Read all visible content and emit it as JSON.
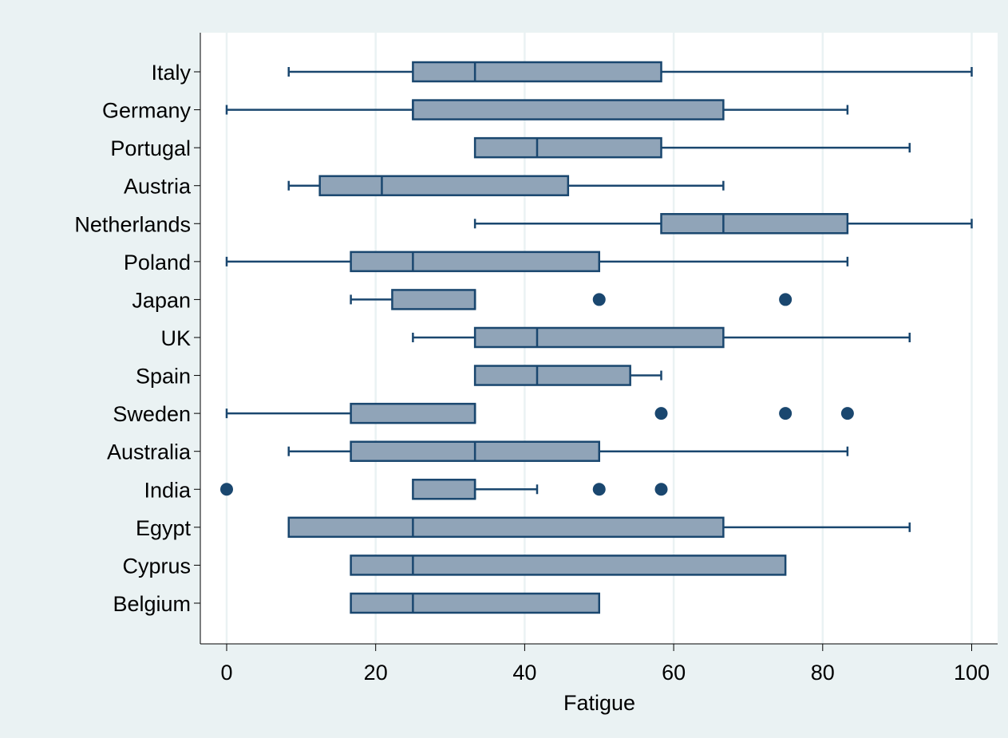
{
  "chart_data": {
    "type": "boxplot",
    "orientation": "horizontal",
    "xlabel": "Fatigue",
    "xlim": [
      0,
      100
    ],
    "xticks": [
      0,
      20,
      40,
      60,
      80,
      100
    ],
    "xtick_labels": [
      "0",
      "20",
      "40",
      "60",
      "80",
      "100"
    ],
    "grid": "vertical",
    "legend": "none",
    "colors": {
      "background": "#eaf2f3",
      "plot_background": "#ffffff",
      "gridline": "#eaf2f3",
      "box_fill": "#90a4b8",
      "stroke": "#1a476f",
      "outlier": "#1a476f",
      "text": "#000000"
    },
    "categories": [
      "Italy",
      "Germany",
      "Portugal",
      "Austria",
      "Netherlands",
      "Poland",
      "Japan",
      "UK",
      "Spain",
      "Sweden",
      "Australia",
      "India",
      "Egypt",
      "Cyprus",
      "Belgium"
    ],
    "boxes": [
      {
        "category": "Italy",
        "whisker_low": 8.33,
        "q1": 25,
        "median": 33.33,
        "q3": 58.33,
        "whisker_high": 100,
        "outliers": []
      },
      {
        "category": "Germany",
        "whisker_low": 0,
        "q1": 25,
        "median": 25,
        "q3": 66.67,
        "whisker_high": 83.33,
        "outliers": []
      },
      {
        "category": "Portugal",
        "whisker_low": 33.33,
        "q1": 33.33,
        "median": 41.67,
        "q3": 58.33,
        "whisker_high": 91.67,
        "outliers": []
      },
      {
        "category": "Austria",
        "whisker_low": 8.33,
        "q1": 12.5,
        "median": 20.83,
        "q3": 45.83,
        "whisker_high": 66.67,
        "outliers": []
      },
      {
        "category": "Netherlands",
        "whisker_low": 33.33,
        "q1": 58.33,
        "median": 66.67,
        "q3": 83.33,
        "whisker_high": 100,
        "outliers": []
      },
      {
        "category": "Poland",
        "whisker_low": 0,
        "q1": 16.67,
        "median": 25,
        "q3": 50,
        "whisker_high": 83.33,
        "outliers": []
      },
      {
        "category": "Japan",
        "whisker_low": 16.67,
        "q1": 22.22,
        "median": 33.33,
        "q3": 33.33,
        "whisker_high": 33.33,
        "outliers": [
          50,
          75
        ]
      },
      {
        "category": "UK",
        "whisker_low": 25,
        "q1": 33.33,
        "median": 41.67,
        "q3": 66.67,
        "whisker_high": 91.67,
        "outliers": []
      },
      {
        "category": "Spain",
        "whisker_low": 33.33,
        "q1": 33.33,
        "median": 41.67,
        "q3": 54.17,
        "whisker_high": 58.33,
        "outliers": []
      },
      {
        "category": "Sweden",
        "whisker_low": 0,
        "q1": 16.67,
        "median": 33.33,
        "q3": 33.33,
        "whisker_high": 33.33,
        "outliers": [
          58.33,
          75,
          83.33
        ]
      },
      {
        "category": "Australia",
        "whisker_low": 8.33,
        "q1": 16.67,
        "median": 33.33,
        "q3": 50,
        "whisker_high": 83.33,
        "outliers": []
      },
      {
        "category": "India",
        "whisker_low": 25,
        "q1": 25,
        "median": 33.33,
        "q3": 33.33,
        "whisker_high": 41.67,
        "outliers": [
          0,
          50,
          58.33
        ]
      },
      {
        "category": "Egypt",
        "whisker_low": 8.33,
        "q1": 8.33,
        "median": 25,
        "q3": 66.67,
        "whisker_high": 91.67,
        "outliers": []
      },
      {
        "category": "Cyprus",
        "whisker_low": 16.67,
        "q1": 16.67,
        "median": 25,
        "q3": 75,
        "whisker_high": 75,
        "outliers": []
      },
      {
        "category": "Belgium",
        "whisker_low": 16.67,
        "q1": 16.67,
        "median": 25,
        "q3": 50,
        "whisker_high": 50,
        "outliers": []
      }
    ]
  }
}
